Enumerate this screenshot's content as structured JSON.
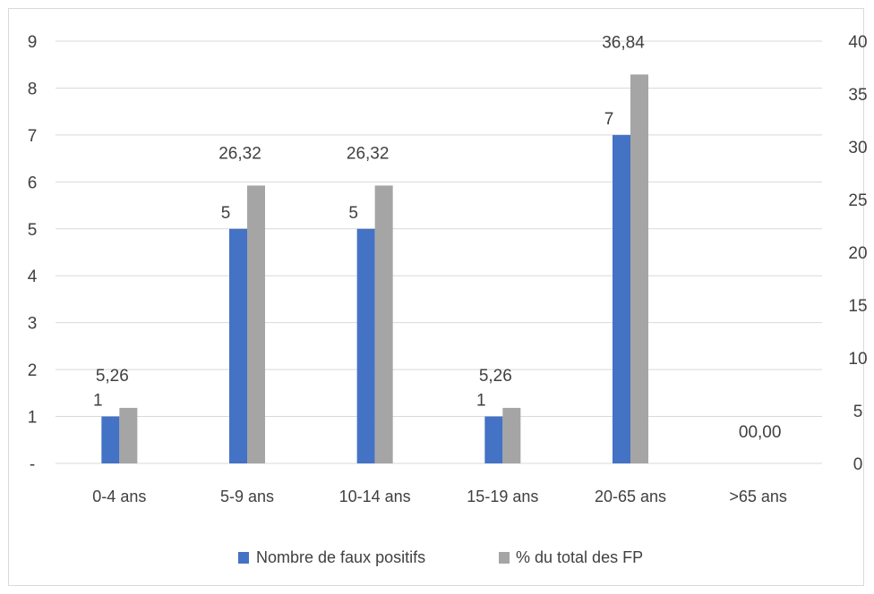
{
  "chart_data": {
    "type": "bar",
    "categories": [
      "0-4 ans",
      "5-9 ans",
      "10-14 ans",
      "15-19 ans",
      "20-65 ans",
      ">65 ans"
    ],
    "series": [
      {
        "name": "Nombre de faux positifs",
        "axis": "left",
        "color": "#4472c4",
        "values": [
          1,
          5,
          5,
          1,
          7,
          0
        ],
        "labels": [
          "1",
          "5",
          "5",
          "1",
          "7",
          "0"
        ]
      },
      {
        "name": "% du total des FP",
        "axis": "right",
        "color": "#a5a5a5",
        "values": [
          5.26,
          26.32,
          26.32,
          5.26,
          36.84,
          0.0
        ],
        "labels": [
          "5,26",
          "26,32",
          "26,32",
          "5,26",
          "36,84",
          "0,00"
        ]
      }
    ],
    "y_left": {
      "ylim": [
        0,
        9
      ],
      "tick_labels": [
        "-",
        "1",
        "2",
        "3",
        "4",
        "5",
        "6",
        "7",
        "8",
        "9"
      ]
    },
    "y_right": {
      "ylim": [
        0,
        40
      ],
      "tick_labels": [
        "0",
        "5",
        "10",
        "15",
        "20",
        "25",
        "30",
        "35",
        "40"
      ]
    },
    "grid": true,
    "legend": "bottom",
    "colors": {
      "gridline": "#d9d9d9",
      "text": "#404040",
      "frame": "#d9d9d9"
    }
  }
}
